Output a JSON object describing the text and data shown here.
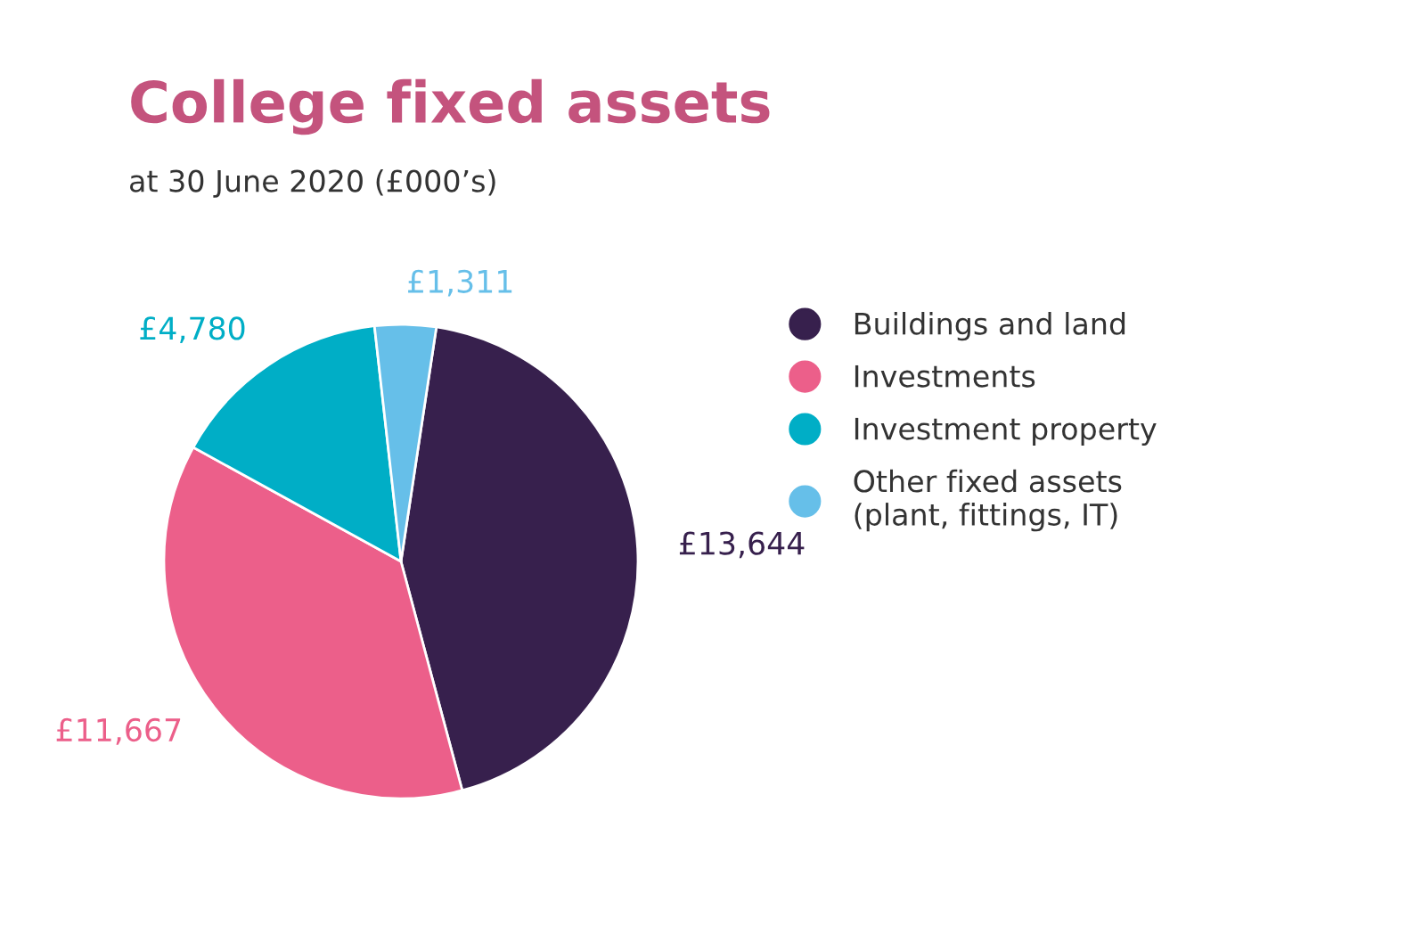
{
  "chart_data": {
    "type": "pie",
    "title": "College fixed assets",
    "subtitle": "at 30 June 2020 (£000’s)",
    "categories": [
      "Buildings and land",
      "Investments",
      "Investment property",
      "Other fixed assets\n(plant, fittings, IT)"
    ],
    "values": [
      13644,
      11667,
      4780,
      1311
    ],
    "value_labels": [
      "£13,644",
      "£11,667",
      "£4,780",
      "£1,311"
    ],
    "colors": [
      "#37204d",
      "#ec5f8a",
      "#00aec6",
      "#66bfe9"
    ],
    "legend": "right"
  }
}
